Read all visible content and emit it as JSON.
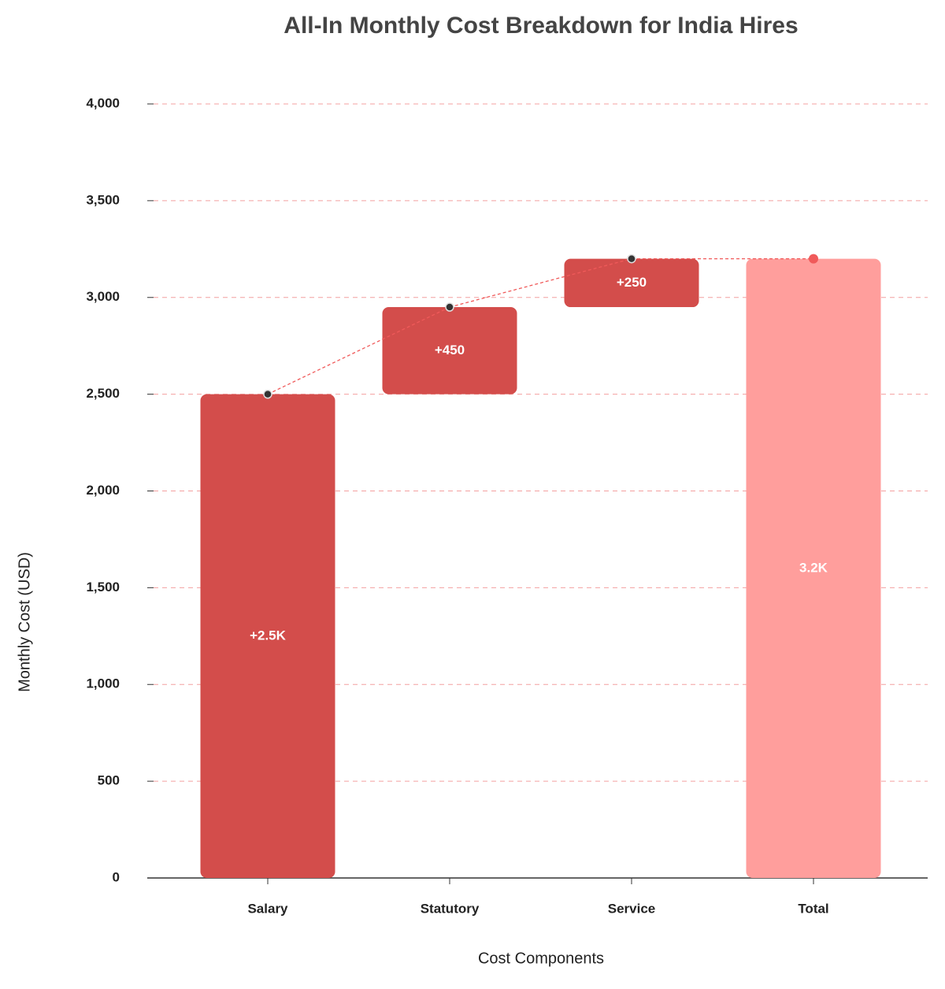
{
  "chart_data": {
    "type": "waterfall",
    "title": "All-In Monthly Cost Breakdown for India Hires",
    "x_label": "Cost Components",
    "y_label": "Monthly Cost (USD)",
    "categories": [
      "Salary",
      "Statutory",
      "Service",
      "Total"
    ],
    "values": [
      2500,
      450,
      250,
      3200
    ],
    "value_labels": [
      "+2.5K",
      "+450",
      "+250",
      "3.2K"
    ],
    "measure": [
      "relative",
      "relative",
      "relative",
      "total"
    ],
    "colors": {
      "increase": "#d34d4b",
      "total": "#ff9e9c",
      "connector": "#f05a5a"
    },
    "ylim": [
      0,
      4000
    ],
    "yticks": [
      0,
      500,
      {
        "value": 1000,
        "label": "1,000"
      },
      {
        "value": 1500,
        "label": "1,500"
      },
      {
        "value": 2000,
        "label": "2,000"
      },
      {
        "value": 2500,
        "label": "2,500"
      },
      {
        "value": 3000,
        "label": "3,000"
      },
      {
        "value": 3500,
        "label": "3,500"
      },
      {
        "value": 4000,
        "label": "4,000"
      }
    ],
    "grid": true
  }
}
